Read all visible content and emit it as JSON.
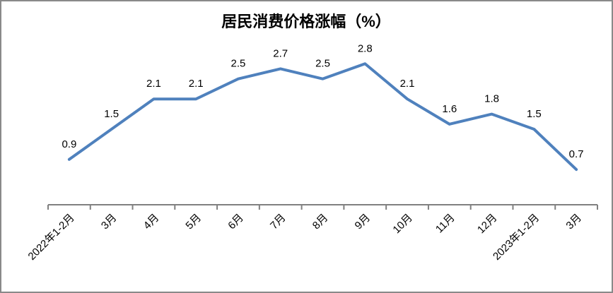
{
  "frame": {
    "border_color": "#898989",
    "background": "#ffffff"
  },
  "chart_data": {
    "type": "line",
    "title": "居民消费价格涨幅（%）",
    "categories": [
      "2022年1-2月",
      "3月",
      "4月",
      "5月",
      "6月",
      "7月",
      "8月",
      "9月",
      "10月",
      "11月",
      "12月",
      "2023年1-2月",
      "3月"
    ],
    "values": [
      0.9,
      1.5,
      2.1,
      2.1,
      2.5,
      2.7,
      2.5,
      2.8,
      2.1,
      1.6,
      1.8,
      1.5,
      0.7
    ],
    "data_labels": [
      "0.9",
      "1.5",
      "2.1",
      "2.1",
      "2.5",
      "2.7",
      "2.5",
      "2.8",
      "2.1",
      "1.6",
      "1.8",
      "1.5",
      "0.7"
    ],
    "xlabel": "",
    "ylabel": "",
    "ylim": [
      0,
      3
    ],
    "grid": false,
    "legend": false,
    "x_tick_rotation": -45,
    "line_color": "#4F81BD",
    "axis_color": "#808080",
    "label_color": "#000000"
  }
}
